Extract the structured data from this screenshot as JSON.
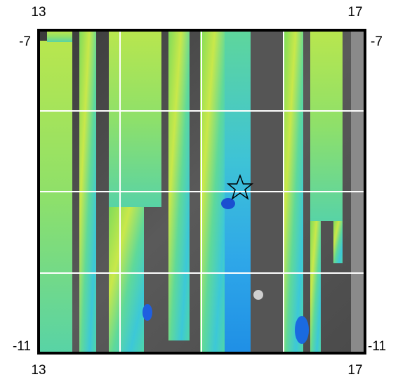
{
  "map": {
    "top_labels": [
      "13",
      "17"
    ],
    "bottom_labels": [
      "13",
      "17"
    ],
    "left_labels": [
      "-7",
      "-11"
    ],
    "right_labels": [
      "-7",
      "-11"
    ]
  }
}
